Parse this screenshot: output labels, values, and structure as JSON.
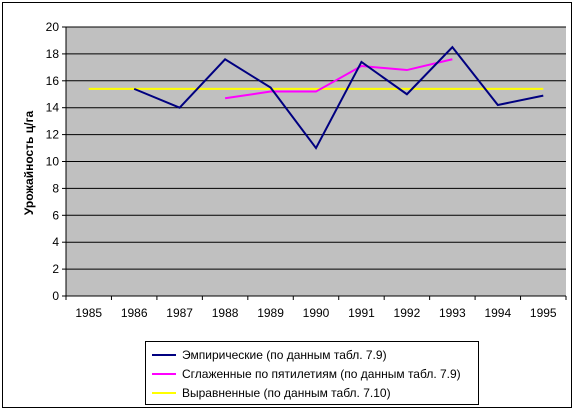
{
  "chart_data": {
    "type": "line",
    "title": "",
    "xlabel": "",
    "ylabel": "Урожайность ц/га",
    "ylim": [
      0,
      20
    ],
    "yticks": [
      0,
      2,
      4,
      6,
      8,
      10,
      12,
      14,
      16,
      18,
      20
    ],
    "categories": [
      "1985",
      "1986",
      "1987",
      "1988",
      "1989",
      "1990",
      "1991",
      "1992",
      "1993",
      "1994",
      "1995"
    ],
    "grid": "horizontal",
    "plot_background": "#c0c0c0",
    "legend_position": "bottom",
    "series": [
      {
        "name": "Эмпирические (по данным табл. 7.9)",
        "color": "#000080",
        "values": [
          null,
          15.4,
          14.0,
          17.6,
          15.5,
          11.0,
          17.4,
          15.0,
          18.5,
          14.2,
          14.9
        ]
      },
      {
        "name": "Сглаженные по пятилетиям (по данным табл. 7.9)",
        "color": "#ff00ff",
        "values": [
          null,
          null,
          null,
          14.7,
          15.2,
          15.2,
          17.1,
          16.8,
          17.6,
          null,
          null
        ]
      },
      {
        "name": "Выравненные (по данным табл. 7.10)",
        "color": "#ffff00",
        "values": [
          15.4,
          15.4,
          15.4,
          15.4,
          15.4,
          15.4,
          15.4,
          15.4,
          15.4,
          15.4,
          15.4
        ]
      }
    ]
  }
}
